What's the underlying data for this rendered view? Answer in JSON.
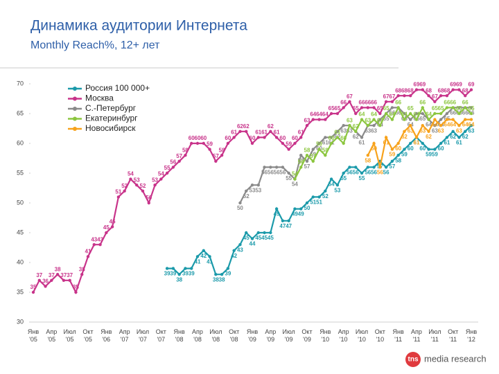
{
  "chart_data": {
    "type": "line",
    "title": "Динамика аудитории Интернета",
    "subtitle": "Monthly Reach%, 12+ лет",
    "logo": {
      "mark": "tns",
      "text": "media research"
    },
    "categories": [
      "Янв\n'05",
      null,
      null,
      "Апр\n'05",
      null,
      null,
      "Июл\n'05",
      null,
      null,
      "Окт\n'05",
      null,
      null,
      "Янв\n'06",
      null,
      null,
      "Апр\n'07",
      null,
      null,
      "Июл\n'07",
      null,
      null,
      "Окт\n'07",
      null,
      null,
      "Янв\n'08",
      null,
      null,
      "Апр\n'08",
      null,
      null,
      "Июл\n'08",
      null,
      null,
      "Окт\n'08",
      null,
      null,
      "Янв\n'09",
      null,
      null,
      "Апр\n'09",
      null,
      null,
      "Июл\n'09",
      null,
      null,
      "Окт\n'09",
      null,
      null,
      "Янв\n'10",
      null,
      null,
      "Апр\n'10",
      null,
      null,
      "Июл\n'10",
      null,
      null,
      "Окт\n'10",
      null,
      null,
      "Янв\n'11",
      null,
      null,
      "Апр\n'11",
      null,
      null,
      "Июл\n'11",
      null,
      null,
      "Окт\n'11",
      null,
      null,
      "Янв\n'12"
    ],
    "series": [
      {
        "name": "Россия 100 000+",
        "color": "#1b9aaa",
        "values": [
          null,
          null,
          null,
          null,
          null,
          null,
          null,
          null,
          null,
          null,
          null,
          null,
          null,
          null,
          null,
          null,
          null,
          null,
          null,
          null,
          null,
          null,
          39,
          39,
          38,
          39,
          39,
          41,
          42,
          41,
          38,
          38,
          39,
          42,
          43,
          45,
          44,
          45,
          45,
          45,
          49,
          47,
          47,
          49,
          49,
          50,
          51,
          51,
          52,
          54,
          53,
          55,
          56,
          56,
          55,
          56,
          56,
          57,
          56,
          57,
          58,
          59,
          60,
          61,
          60,
          59,
          59,
          60,
          61,
          62,
          61,
          62,
          63
        ]
      },
      {
        "name": "Москва",
        "color": "#c8338a",
        "values": [
          35,
          37,
          36,
          37,
          38,
          37,
          37,
          35,
          38,
          41,
          43,
          43,
          45,
          46,
          51,
          52,
          54,
          53,
          52,
          50,
          53,
          54,
          55,
          56,
          57,
          58,
          60,
          60,
          60,
          59,
          57,
          58,
          60,
          61,
          62,
          62,
          60,
          61,
          61,
          62,
          61,
          60,
          59,
          60,
          61,
          63,
          64,
          64,
          64,
          65,
          65,
          66,
          67,
          65,
          66,
          66,
          66,
          65,
          67,
          67,
          68,
          68,
          68,
          69,
          69,
          68,
          67,
          68,
          68,
          69,
          69,
          68,
          69
        ]
      },
      {
        "name": "С.-Петербург",
        "color": "#8a8a8a",
        "values": [
          null,
          null,
          null,
          null,
          null,
          null,
          null,
          null,
          null,
          null,
          null,
          null,
          null,
          null,
          null,
          null,
          null,
          null,
          null,
          null,
          null,
          null,
          null,
          null,
          null,
          null,
          null,
          null,
          null,
          null,
          null,
          null,
          null,
          null,
          50,
          52,
          53,
          53,
          56,
          56,
          56,
          56,
          55,
          54,
          58,
          57,
          59,
          60,
          61,
          61,
          62,
          63,
          63,
          62,
          61,
          63,
          63,
          64,
          65,
          66,
          66,
          65,
          64,
          65,
          65,
          64,
          63,
          64,
          65,
          66,
          66,
          66,
          66
        ]
      },
      {
        "name": "Екатеринбург",
        "color": "#8cc63f",
        "values": [
          null,
          null,
          null,
          null,
          null,
          null,
          null,
          null,
          null,
          null,
          null,
          null,
          null,
          null,
          null,
          null,
          null,
          null,
          null,
          null,
          null,
          null,
          null,
          null,
          null,
          null,
          null,
          null,
          null,
          null,
          null,
          null,
          null,
          null,
          null,
          null,
          null,
          null,
          null,
          null,
          null,
          null,
          null,
          54,
          56,
          58,
          57,
          59,
          58,
          60,
          61,
          60,
          63,
          62,
          64,
          63,
          64,
          63,
          65,
          64,
          66,
          64,
          65,
          64,
          66,
          64,
          65,
          65,
          66,
          66,
          65,
          66,
          65
        ]
      },
      {
        "name": "Новосибирск",
        "color": "#f7a21b",
        "values": [
          null,
          null,
          null,
          null,
          null,
          null,
          null,
          null,
          null,
          null,
          null,
          null,
          null,
          null,
          null,
          null,
          null,
          null,
          null,
          null,
          null,
          null,
          null,
          null,
          null,
          null,
          null,
          null,
          null,
          null,
          null,
          null,
          null,
          null,
          null,
          null,
          null,
          null,
          null,
          null,
          null,
          null,
          null,
          null,
          null,
          null,
          null,
          null,
          null,
          null,
          null,
          null,
          null,
          null,
          null,
          58,
          60,
          56,
          61,
          59,
          60,
          62,
          63,
          61,
          63,
          62,
          64,
          63,
          64,
          64,
          63,
          64,
          64
        ]
      }
    ],
    "ylim": [
      30,
      70
    ],
    "yticks": [
      30,
      35,
      40,
      45,
      50,
      55,
      60,
      65,
      70
    ],
    "grid": false,
    "legend": "top-left"
  }
}
